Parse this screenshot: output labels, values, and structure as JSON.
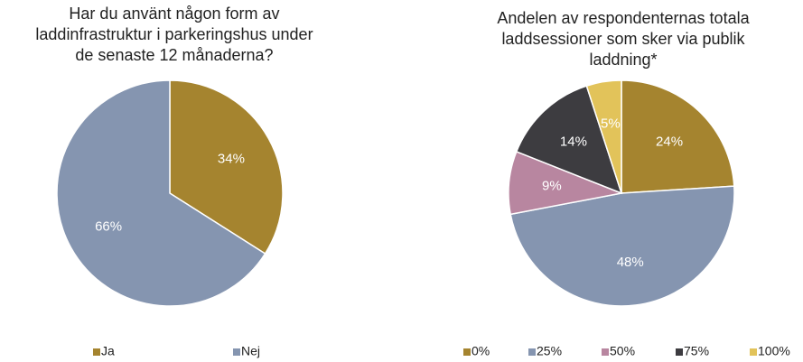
{
  "chart_data": [
    {
      "type": "pie",
      "title": [
        "Har du använt någon form av",
        "laddinfrastruktur i parkeringshus under",
        "de senaste 12 månaderna?"
      ],
      "categories": [
        "Ja",
        "Nej"
      ],
      "values": [
        34,
        66
      ],
      "value_labels": [
        "34%",
        "66%"
      ],
      "colors": [
        "#a5842f",
        "#8595b0"
      ],
      "legend": "bottom"
    },
    {
      "type": "pie",
      "title": [
        "Andelen av respondenternas totala",
        "laddsessioner som sker via publik",
        "laddning*"
      ],
      "categories": [
        "0%",
        "25%",
        "50%",
        "75%",
        "100%"
      ],
      "values": [
        24,
        48,
        9,
        14,
        5
      ],
      "value_labels": [
        "24%",
        "48%",
        "9%",
        "14%",
        "5%"
      ],
      "colors": [
        "#a5842f",
        "#8595b0",
        "#b886a0",
        "#3d3c40",
        "#e2c35a"
      ],
      "legend": "bottom"
    }
  ]
}
